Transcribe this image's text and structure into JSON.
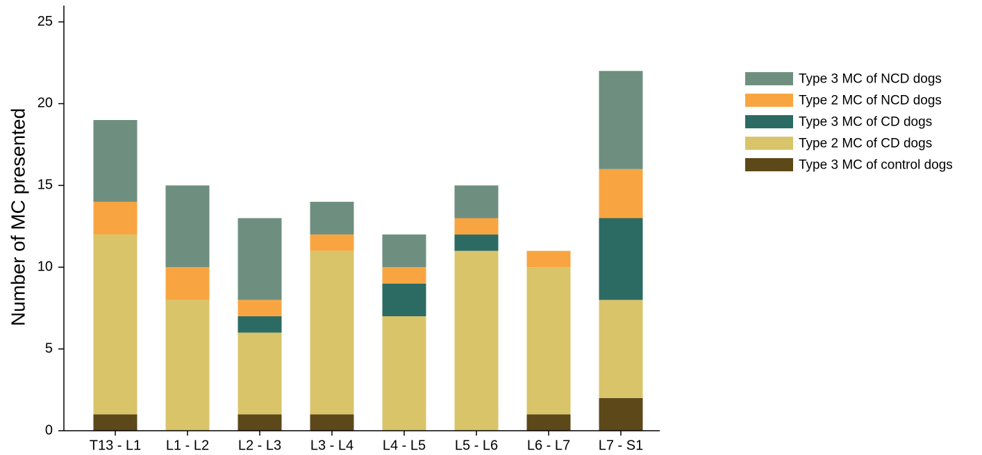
{
  "chart_data": {
    "type": "bar",
    "stacked": true,
    "title": "",
    "xlabel": "",
    "ylabel": "Number of MC presented",
    "ylim": [
      0,
      26
    ],
    "yticks": [
      0,
      5,
      10,
      15,
      20,
      25
    ],
    "grid": false,
    "legend_position": "right",
    "categories": [
      "T13 - L1",
      "L1 - L2",
      "L2 - L3",
      "L3 - L4",
      "L4 - L5",
      "L5 - L6",
      "L6 - L7",
      "L7 - S1"
    ],
    "series": [
      {
        "name": "Type 3 MC of control dogs",
        "color": "#5c4818",
        "values": [
          1,
          0,
          1,
          1,
          0,
          0,
          1,
          2
        ]
      },
      {
        "name": "Type 2 MC of CD dogs",
        "color": "#d9c46a",
        "values": [
          11,
          8,
          5,
          10,
          7,
          11,
          9,
          6
        ]
      },
      {
        "name": "Type 3 MC of CD dogs",
        "color": "#2c6b63",
        "values": [
          0,
          0,
          1,
          0,
          2,
          1,
          0,
          5
        ]
      },
      {
        "name": "Type 2 MC of NCD dogs",
        "color": "#f8a541",
        "values": [
          2,
          2,
          1,
          1,
          1,
          1,
          1,
          3
        ]
      },
      {
        "name": "Type 3 MC of NCD dogs",
        "color": "#6e8f80",
        "values": [
          5,
          5,
          5,
          2,
          2,
          2,
          0,
          6
        ]
      }
    ],
    "legend_order": [
      "Type 3 MC of NCD dogs",
      "Type 2 MC of NCD dogs",
      "Type 3 MC of CD dogs",
      "Type 2 MC of CD dogs",
      "Type 3 MC of control dogs"
    ]
  }
}
